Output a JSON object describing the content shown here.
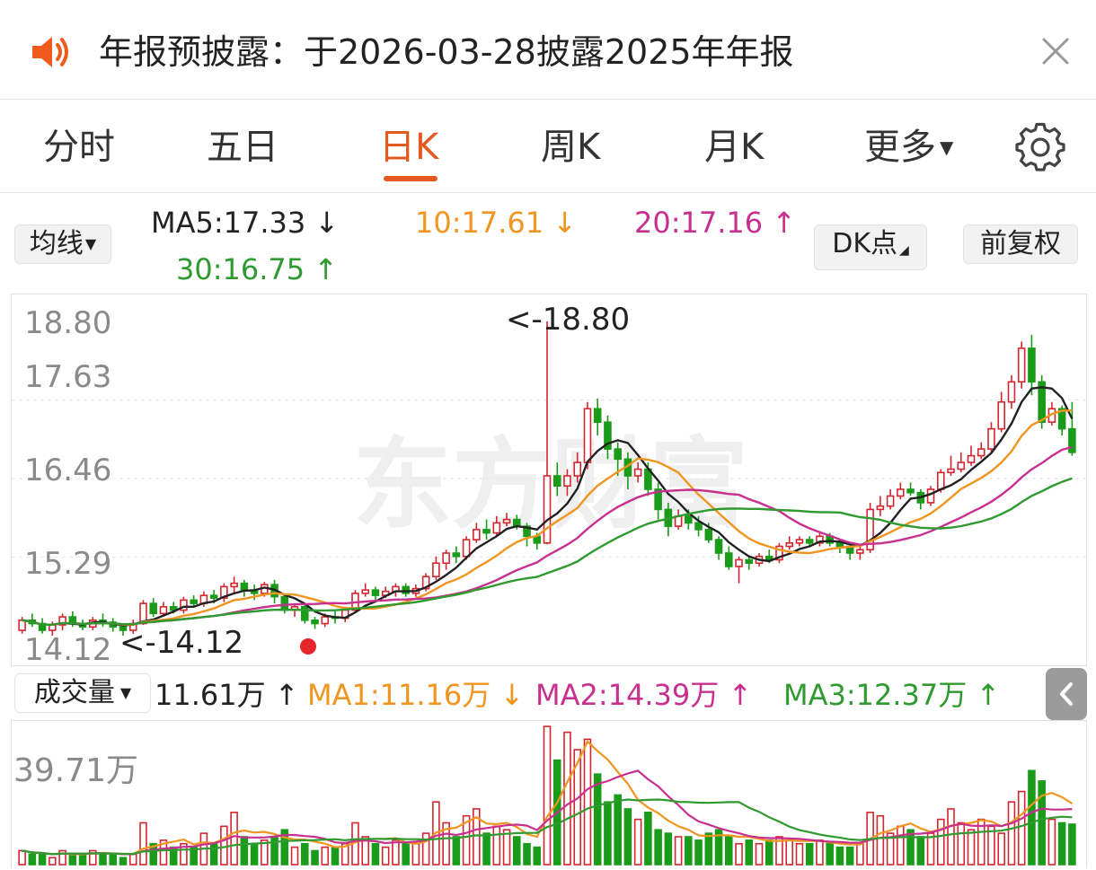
{
  "notice": {
    "text": "年报预披露：于2026-03-28披露2025年年报"
  },
  "tabs": [
    {
      "label": "分时"
    },
    {
      "label": "五日"
    },
    {
      "label": "日K"
    },
    {
      "label": "周K"
    },
    {
      "label": "月K"
    },
    {
      "label": "更多"
    }
  ],
  "active_tab": "日K",
  "price_controls": {
    "ma_button": "均线",
    "dk_button": "DK点",
    "adjust_button": "前复权"
  },
  "ma_legend": {
    "ma5": "MA5:17.33",
    "ma10": "10:17.61",
    "ma20": "20:17.16",
    "ma30": "30:16.75",
    "colors": {
      "ma5": "#222222",
      "ma10": "#f0951f",
      "ma20": "#c8308f",
      "ma30": "#2f9a2f"
    }
  },
  "price_axis": [
    "18.80",
    "17.63",
    "16.46",
    "15.29",
    "14.12"
  ],
  "price_annotations": {
    "high": "<-18.80",
    "low": "<-14.12"
  },
  "volume_controls": {
    "selector": "成交量"
  },
  "volume_legend": {
    "value": "11.61万",
    "ma1": "MA1:11.16万",
    "ma2": "MA2:14.39万",
    "ma3": "MA3:12.37万"
  },
  "volume_axis": {
    "max": "39.71万"
  },
  "watermark": "东方财富",
  "colors": {
    "up": "#d3262e",
    "down": "#1a9b1a",
    "accent": "#e3591f"
  },
  "chart_data": {
    "type": "candlestick",
    "ylim": [
      14.12,
      18.8
    ],
    "candles": [
      [
        14.2,
        14.35,
        14.15,
        14.4
      ],
      [
        14.35,
        14.3,
        14.25,
        14.45
      ],
      [
        14.3,
        14.2,
        14.15,
        14.38
      ],
      [
        14.2,
        14.28,
        14.12,
        14.33
      ],
      [
        14.28,
        14.4,
        14.2,
        14.45
      ],
      [
        14.4,
        14.3,
        14.25,
        14.48
      ],
      [
        14.3,
        14.25,
        14.2,
        14.36
      ],
      [
        14.25,
        14.35,
        14.2,
        14.4
      ],
      [
        14.35,
        14.32,
        14.25,
        14.45
      ],
      [
        14.32,
        14.25,
        14.18,
        14.38
      ],
      [
        14.25,
        14.2,
        14.12,
        14.3
      ],
      [
        14.2,
        14.3,
        14.15,
        14.36
      ],
      [
        14.3,
        14.6,
        14.28,
        14.65
      ],
      [
        14.6,
        14.45,
        14.4,
        14.68
      ],
      [
        14.45,
        14.55,
        14.4,
        14.62
      ],
      [
        14.55,
        14.5,
        14.45,
        14.62
      ],
      [
        14.5,
        14.65,
        14.45,
        14.7
      ],
      [
        14.65,
        14.6,
        14.55,
        14.72
      ],
      [
        14.6,
        14.72,
        14.55,
        14.78
      ],
      [
        14.72,
        14.68,
        14.6,
        14.8
      ],
      [
        14.68,
        14.85,
        14.62,
        14.9
      ],
      [
        14.85,
        14.9,
        14.75,
        15.0
      ],
      [
        14.9,
        14.8,
        14.7,
        14.95
      ],
      [
        14.8,
        14.75,
        14.65,
        14.88
      ],
      [
        14.75,
        14.88,
        14.7,
        14.92
      ],
      [
        14.88,
        14.7,
        14.6,
        14.95
      ],
      [
        14.7,
        14.5,
        14.45,
        14.75
      ],
      [
        14.5,
        14.55,
        14.4,
        14.6
      ],
      [
        14.55,
        14.35,
        14.3,
        14.6
      ],
      [
        14.35,
        14.3,
        14.22,
        14.4
      ],
      [
        14.3,
        14.4,
        14.25,
        14.45
      ],
      [
        14.4,
        14.38,
        14.3,
        14.5
      ],
      [
        14.38,
        14.5,
        14.32,
        14.55
      ],
      [
        14.5,
        14.75,
        14.48,
        14.8
      ],
      [
        14.75,
        14.8,
        14.7,
        14.9
      ],
      [
        14.8,
        14.72,
        14.65,
        14.85
      ],
      [
        14.72,
        14.78,
        14.68,
        14.85
      ],
      [
        14.78,
        14.85,
        14.7,
        14.9
      ],
      [
        14.85,
        14.75,
        14.7,
        14.9
      ],
      [
        14.75,
        14.82,
        14.7,
        14.88
      ],
      [
        14.82,
        15.0,
        14.78,
        15.05
      ],
      [
        15.0,
        15.2,
        14.95,
        15.3
      ],
      [
        15.2,
        15.35,
        15.1,
        15.4
      ],
      [
        15.35,
        15.3,
        15.2,
        15.45
      ],
      [
        15.3,
        15.55,
        15.25,
        15.6
      ],
      [
        15.55,
        15.7,
        15.5,
        15.8
      ],
      [
        15.7,
        15.65,
        15.55,
        15.85
      ],
      [
        15.65,
        15.8,
        15.6,
        15.9
      ],
      [
        15.8,
        15.85,
        15.75,
        15.95
      ],
      [
        15.85,
        15.75,
        15.7,
        15.92
      ],
      [
        15.75,
        15.6,
        15.45,
        15.8
      ],
      [
        15.6,
        15.5,
        15.4,
        15.65
      ],
      [
        15.5,
        16.5,
        15.48,
        18.8
      ],
      [
        16.5,
        16.35,
        16.2,
        16.7
      ],
      [
        16.35,
        16.5,
        16.2,
        16.6
      ],
      [
        16.5,
        16.7,
        16.4,
        16.85
      ],
      [
        16.7,
        17.5,
        16.6,
        17.6
      ],
      [
        17.5,
        17.3,
        17.1,
        17.65
      ],
      [
        17.3,
        16.9,
        16.75,
        17.4
      ],
      [
        16.9,
        16.75,
        16.5,
        17.0
      ],
      [
        16.75,
        16.5,
        16.3,
        16.85
      ],
      [
        16.5,
        16.6,
        16.4,
        16.7
      ],
      [
        16.6,
        16.3,
        16.2,
        16.7
      ],
      [
        16.3,
        16.0,
        15.85,
        16.4
      ],
      [
        16.0,
        15.75,
        15.6,
        16.1
      ],
      [
        15.75,
        15.9,
        15.7,
        16.0
      ],
      [
        15.9,
        15.8,
        15.7,
        16.0
      ],
      [
        15.8,
        15.7,
        15.6,
        15.9
      ],
      [
        15.7,
        15.55,
        15.5,
        15.8
      ],
      [
        15.55,
        15.35,
        15.25,
        15.6
      ],
      [
        15.35,
        15.15,
        15.1,
        15.45
      ],
      [
        15.15,
        15.25,
        14.9,
        15.3
      ],
      [
        15.25,
        15.2,
        15.1,
        15.3
      ],
      [
        15.2,
        15.3,
        15.15,
        15.35
      ],
      [
        15.3,
        15.25,
        15.2,
        15.4
      ],
      [
        15.25,
        15.45,
        15.2,
        15.5
      ],
      [
        15.45,
        15.5,
        15.4,
        15.6
      ],
      [
        15.5,
        15.55,
        15.45,
        15.6
      ],
      [
        15.55,
        15.5,
        15.45,
        15.6
      ],
      [
        15.5,
        15.6,
        15.45,
        15.65
      ],
      [
        15.6,
        15.5,
        15.45,
        15.65
      ],
      [
        15.5,
        15.45,
        15.35,
        15.55
      ],
      [
        15.45,
        15.35,
        15.25,
        15.5
      ],
      [
        15.35,
        15.4,
        15.25,
        15.45
      ],
      [
        15.4,
        16.0,
        15.35,
        16.1
      ],
      [
        16.0,
        16.05,
        15.9,
        16.2
      ],
      [
        16.05,
        16.2,
        16.0,
        16.3
      ],
      [
        16.2,
        16.3,
        16.15,
        16.4
      ],
      [
        16.3,
        16.25,
        16.2,
        16.4
      ],
      [
        16.25,
        16.1,
        16.0,
        16.3
      ],
      [
        16.1,
        16.3,
        16.05,
        16.35
      ],
      [
        16.3,
        16.55,
        16.25,
        16.6
      ],
      [
        16.55,
        16.6,
        16.5,
        16.8
      ],
      [
        16.6,
        16.7,
        16.55,
        16.85
      ],
      [
        16.7,
        16.8,
        16.65,
        16.95
      ],
      [
        16.8,
        16.9,
        16.75,
        17.0
      ],
      [
        16.9,
        17.2,
        16.85,
        17.3
      ],
      [
        17.2,
        17.6,
        17.15,
        17.75
      ],
      [
        17.6,
        17.9,
        17.5,
        18.0
      ],
      [
        17.9,
        18.4,
        17.8,
        18.5
      ],
      [
        18.4,
        17.9,
        17.7,
        18.6
      ],
      [
        17.9,
        17.3,
        17.2,
        18.0
      ],
      [
        17.3,
        17.5,
        17.25,
        17.6
      ],
      [
        17.5,
        17.2,
        17.1,
        17.55
      ],
      [
        17.2,
        16.85,
        16.8,
        17.6
      ]
    ],
    "volume_ylim": [
      0,
      39.71
    ],
    "volume_unit": "万",
    "volumes": [
      4,
      3,
      3,
      2,
      4,
      3,
      3,
      4,
      3,
      3,
      2,
      3,
      12,
      6,
      7,
      5,
      6,
      5,
      9,
      6,
      11,
      15,
      8,
      6,
      7,
      8,
      10,
      5,
      6,
      4,
      5,
      5,
      6,
      12,
      8,
      6,
      5,
      7,
      6,
      6,
      9,
      18,
      12,
      8,
      14,
      16,
      9,
      11,
      10,
      8,
      6,
      5,
      39.7,
      30,
      38,
      33,
      36,
      26,
      18,
      20,
      16,
      13,
      15,
      10,
      9,
      8,
      8,
      7,
      9,
      10,
      8,
      6,
      7,
      6,
      7,
      8,
      7,
      6,
      6,
      7,
      6,
      5,
      5,
      6,
      15,
      14,
      9,
      11,
      10,
      8,
      9,
      13,
      16,
      12,
      10,
      13,
      11,
      9,
      18,
      21,
      27,
      24,
      13,
      12,
      11.61
    ]
  }
}
